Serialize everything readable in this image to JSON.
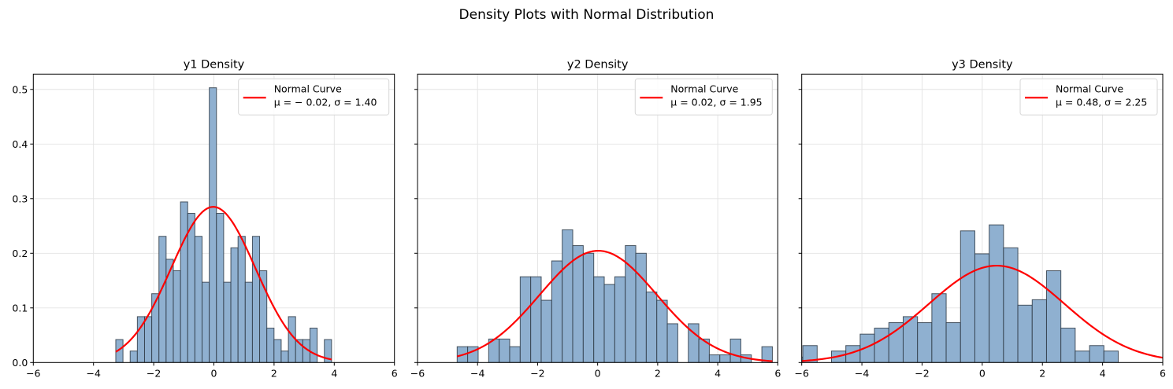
{
  "figure": {
    "suptitle": "Density Plots with Normal Distribution"
  },
  "colors": {
    "bar_fill": "#8fb0d0",
    "bar_edge": "#2f3b47",
    "curve": "#ff0000",
    "grid": "#e3e3e3",
    "axis": "#000000"
  },
  "chart_data": [
    {
      "type": "bar",
      "title": "y1 Density",
      "xlabel": "",
      "ylabel": "",
      "xlim": [
        -6,
        6
      ],
      "ylim": [
        0,
        0.528
      ],
      "xticks": [
        -6,
        -4,
        -2,
        0,
        2,
        4,
        6
      ],
      "xtick_labels": [
        "−6",
        "−4",
        "−2",
        "0",
        "2",
        "4",
        "6"
      ],
      "yticks": [
        0.0,
        0.1,
        0.2,
        0.3,
        0.4,
        0.5
      ],
      "ytick_labels": [
        "0.0",
        "0.1",
        "0.2",
        "0.3",
        "0.4",
        "0.5"
      ],
      "show_yticklabels": true,
      "grid": true,
      "histogram": {
        "bin_start": -3.26,
        "bin_width": 0.239,
        "densities": [
          0.042,
          0,
          0.021,
          0.084,
          0.084,
          0.126,
          0.231,
          0.189,
          0.168,
          0.294,
          0.273,
          0.231,
          0.147,
          0.503,
          0.273,
          0.147,
          0.21,
          0.231,
          0.147,
          0.231,
          0.168,
          0.063,
          0.042,
          0.021,
          0.084,
          0.042,
          0.042,
          0.063,
          0,
          0.042
        ]
      },
      "normal_curve": {
        "mu": -0.02,
        "sigma": 1.4,
        "x_range": [
          -3.26,
          3.91
        ]
      },
      "legend": {
        "placement": "top-right",
        "label_line1": "Normal Curve",
        "label_line2": "μ = − 0.02, σ = 1.40"
      }
    },
    {
      "type": "bar",
      "title": "y2 Density",
      "xlabel": "",
      "ylabel": "",
      "xlim": [
        -6,
        6
      ],
      "ylim": [
        0,
        0.528
      ],
      "xticks": [
        -6,
        -4,
        -2,
        0,
        2,
        4,
        6
      ],
      "xtick_labels": [
        "−6",
        "−4",
        "−2",
        "0",
        "2",
        "4",
        "6"
      ],
      "yticks": [
        0.0,
        0.1,
        0.2,
        0.3,
        0.4,
        0.5
      ],
      "ytick_labels": [
        "",
        "",
        "",
        "",
        "",
        ""
      ],
      "show_yticklabels": false,
      "grid": true,
      "histogram": {
        "bin_start": -4.68,
        "bin_width": 0.35,
        "densities": [
          0.029,
          0.029,
          0,
          0.043,
          0.043,
          0.029,
          0.157,
          0.157,
          0.114,
          0.186,
          0.243,
          0.214,
          0.2,
          0.157,
          0.143,
          0.157,
          0.214,
          0.2,
          0.129,
          0.114,
          0.071,
          0,
          0.071,
          0.043,
          0.014,
          0.014,
          0.043,
          0.014,
          0,
          0.029
        ]
      },
      "normal_curve": {
        "mu": 0.02,
        "sigma": 1.95,
        "x_range": [
          -4.68,
          5.82
        ]
      },
      "legend": {
        "placement": "top-right",
        "label_line1": "Normal Curve",
        "label_line2": "μ = 0.02, σ = 1.95"
      }
    },
    {
      "type": "bar",
      "title": "y3 Density",
      "xlabel": "",
      "ylabel": "",
      "xlim": [
        -6,
        6
      ],
      "ylim": [
        0,
        0.528
      ],
      "xticks": [
        -6,
        -4,
        -2,
        0,
        2,
        4,
        6
      ],
      "xtick_labels": [
        "−6",
        "−4",
        "−2",
        "0",
        "2",
        "4",
        "6"
      ],
      "yticks": [
        0.0,
        0.1,
        0.2,
        0.3,
        0.4,
        0.5
      ],
      "ytick_labels": [
        "",
        "",
        "",
        "",
        "",
        ""
      ],
      "show_yticklabels": false,
      "grid": true,
      "histogram": {
        "bin_start": -6.44,
        "bin_width": 0.4765,
        "densities": [
          0.01,
          0.031,
          0,
          0.021,
          0.031,
          0.052,
          0.063,
          0.073,
          0.084,
          0.073,
          0.126,
          0.073,
          0.241,
          0.199,
          0.252,
          0.21,
          0.105,
          0.115,
          0.168,
          0.063,
          0.021,
          0.031,
          0.021
        ]
      },
      "normal_curve": {
        "mu": 0.48,
        "sigma": 2.25,
        "x_range": [
          -6.5,
          6.5
        ]
      },
      "legend": {
        "placement": "top-right",
        "label_line1": "Normal Curve",
        "label_line2": "μ = 0.48, σ = 2.25"
      }
    }
  ]
}
